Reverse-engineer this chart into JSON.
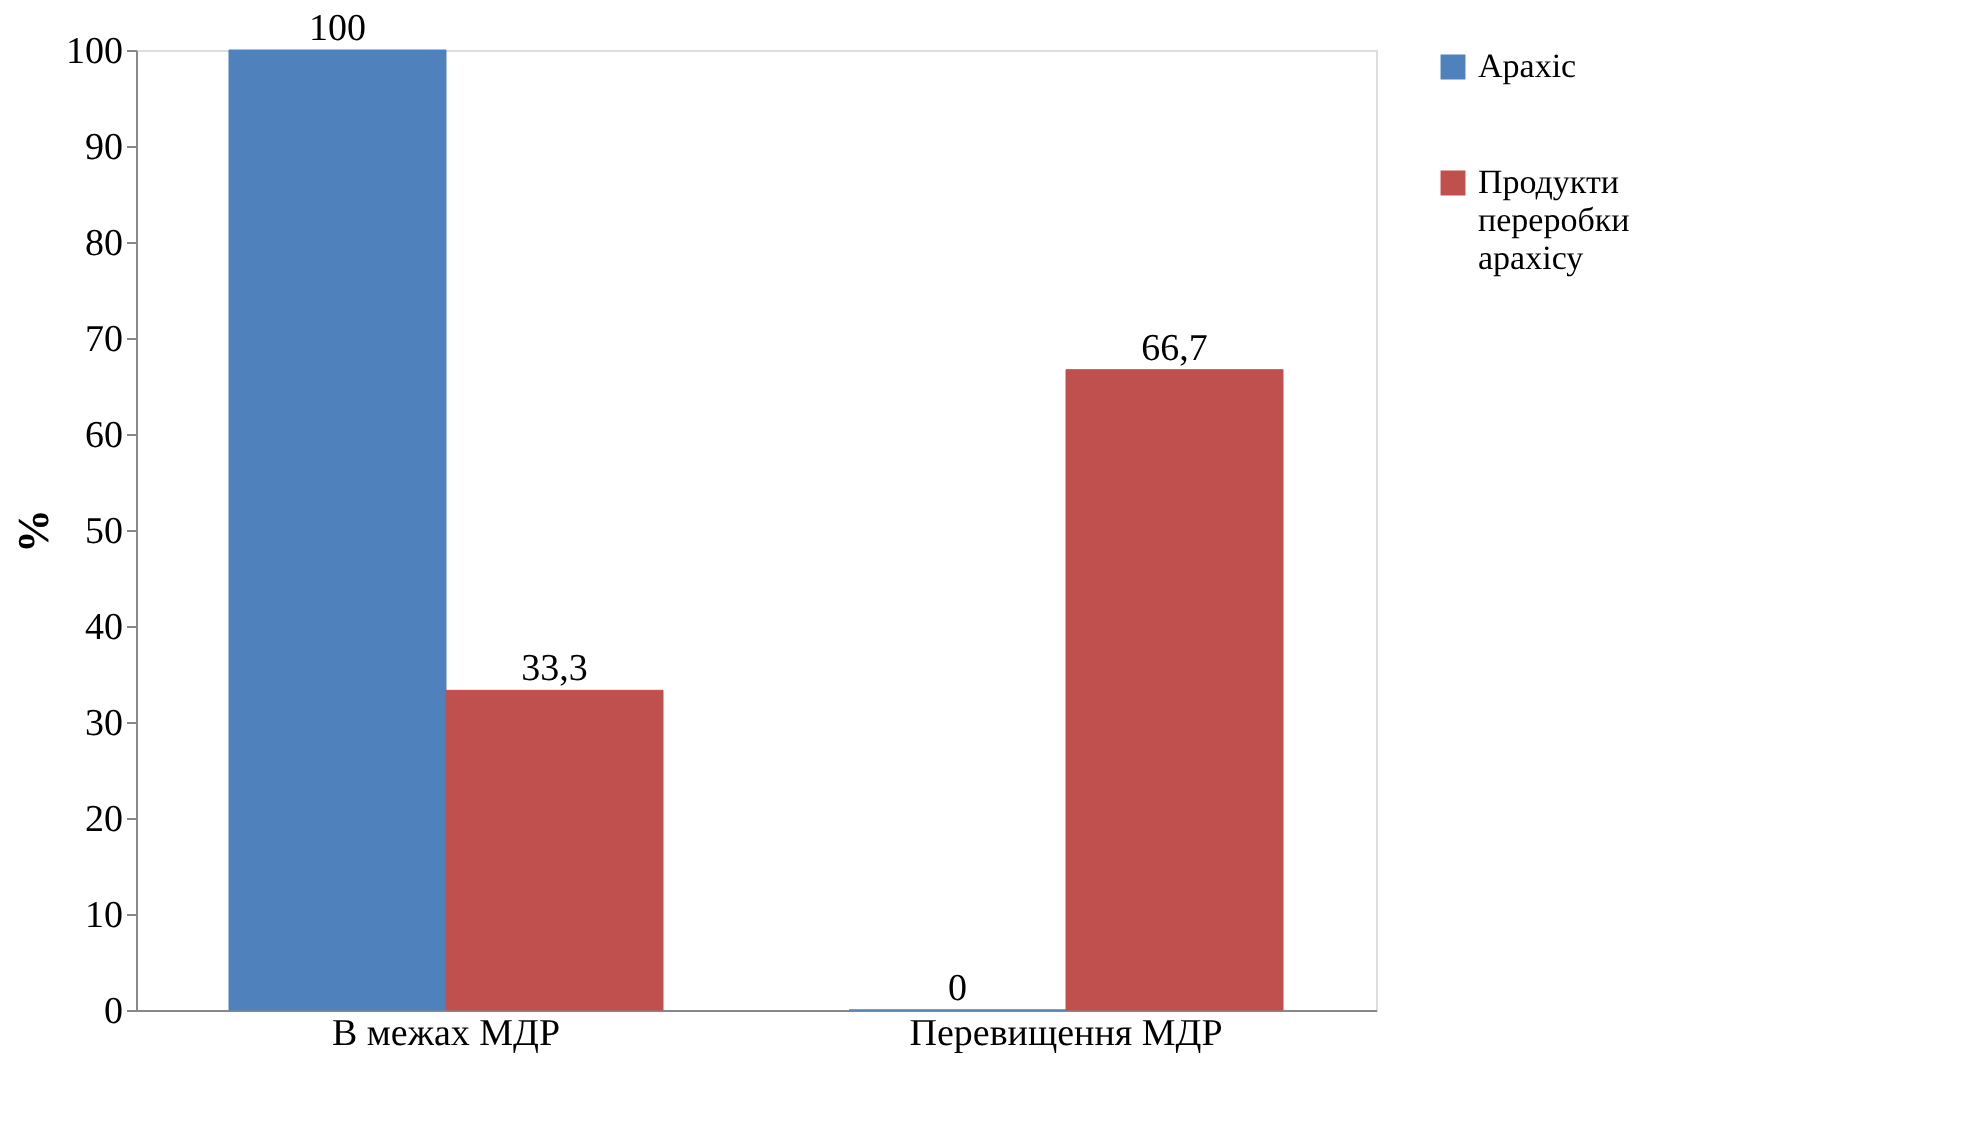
{
  "chart_data": {
    "type": "bar",
    "ylabel": "%",
    "categories": [
      "В межах МДР",
      "Перевищення МДР"
    ],
    "series": [
      {
        "name": "Арахіс",
        "color": "#4f81bd",
        "values": [
          100,
          0
        ],
        "value_labels": [
          "100",
          "0"
        ]
      },
      {
        "name": "Продукти переробки арахісу",
        "color": "#c0504d",
        "values": [
          33.3,
          66.7
        ],
        "value_labels": [
          "33,3",
          "66,7"
        ]
      }
    ],
    "ylim": [
      0,
      100
    ],
    "yticks": [
      0,
      10,
      20,
      30,
      40,
      50,
      60,
      70,
      80,
      90,
      100
    ],
    "grid": false,
    "legend": "right"
  }
}
